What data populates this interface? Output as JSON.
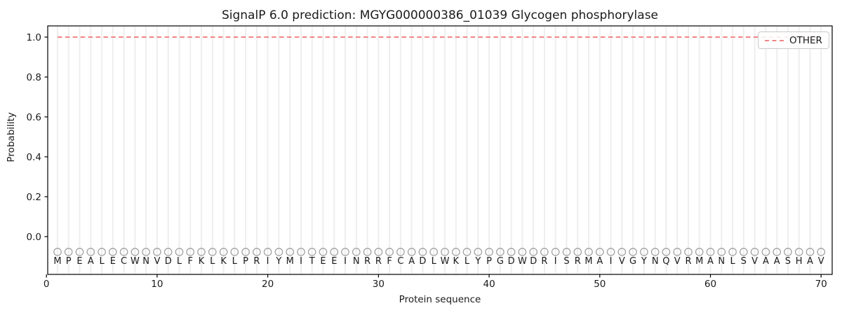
{
  "figure": {
    "title": "SignalP 6.0 prediction: MGYG000000386_01039 Glycogen phosphorylase",
    "xlabel": "Protein sequence",
    "ylabel": "Probability",
    "background_color": "#ffffff"
  },
  "chart_data": {
    "type": "line",
    "title": "SignalP 6.0 prediction: MGYG000000386_01039 Glycogen phosphorylase",
    "xlabel": "Protein sequence",
    "ylabel": "Probability",
    "xlim": [
      0,
      70.8
    ],
    "ylim": [
      -0.19,
      1.06
    ],
    "x_ticks": [
      0,
      10,
      20,
      30,
      40,
      50,
      60,
      70
    ],
    "y_ticks": [
      0.0,
      0.2,
      0.4,
      0.6,
      0.8,
      1.0
    ],
    "grid": "vertical gridline at each residue position",
    "grid_color": "#eeeeee",
    "axis_color": "#000000",
    "legend_position": "upper right",
    "sequence": "MPEALECWNVDLFKLKLPRIYMITEEINRRFCADLWKLYPGDWDRISRMAIVGYNQVRMANLSVAASHAV",
    "series": [
      {
        "name": "OTHER",
        "color": "#f28585",
        "line_style": "dashed",
        "x": [
          1,
          2,
          3,
          4,
          5,
          6,
          7,
          8,
          9,
          10,
          11,
          12,
          13,
          14,
          15,
          16,
          17,
          18,
          19,
          20,
          21,
          22,
          23,
          24,
          25,
          26,
          27,
          28,
          29,
          30,
          31,
          32,
          33,
          34,
          35,
          36,
          37,
          38,
          39,
          40,
          41,
          42,
          43,
          44,
          45,
          46,
          47,
          48,
          49,
          50,
          51,
          52,
          53,
          54,
          55,
          56,
          57,
          58,
          59,
          60,
          61,
          62,
          63,
          64,
          65,
          66,
          67,
          68,
          69,
          70
        ],
        "values": [
          1.0,
          1.0,
          1.0,
          1.0,
          1.0,
          1.0,
          1.0,
          1.0,
          1.0,
          1.0,
          1.0,
          1.0,
          1.0,
          1.0,
          1.0,
          1.0,
          1.0,
          1.0,
          1.0,
          1.0,
          1.0,
          1.0,
          1.0,
          1.0,
          1.0,
          1.0,
          1.0,
          1.0,
          1.0,
          1.0,
          1.0,
          1.0,
          1.0,
          1.0,
          1.0,
          1.0,
          1.0,
          1.0,
          1.0,
          1.0,
          1.0,
          1.0,
          1.0,
          1.0,
          1.0,
          1.0,
          1.0,
          1.0,
          1.0,
          1.0,
          1.0,
          1.0,
          1.0,
          1.0,
          1.0,
          1.0,
          1.0,
          1.0,
          1.0,
          1.0,
          1.0,
          1.0,
          1.0,
          1.0,
          1.0,
          1.0,
          1.0,
          1.0,
          1.0,
          1.0
        ]
      }
    ],
    "residue_markers": {
      "symbol": "open-circle",
      "marker_color": "#a3a3a3",
      "y": -0.077,
      "letter_color": "#1a1a1a"
    }
  }
}
